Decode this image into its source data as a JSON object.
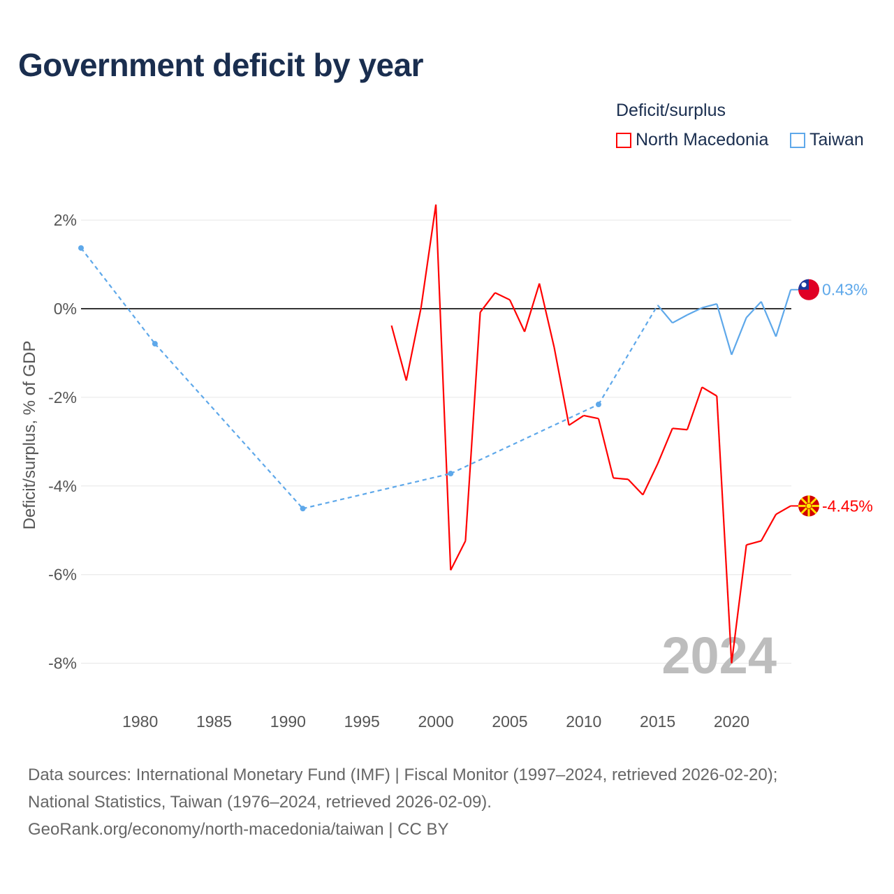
{
  "chart_data": {
    "type": "line",
    "title": "Government deficit by year",
    "ylabel": "Deficit/surplus, % of GDP",
    "xlabel": "",
    "xlim": [
      1976,
      2024
    ],
    "ylim": [
      -9,
      2.4
    ],
    "x_ticks": [
      1980,
      1985,
      1990,
      1995,
      2000,
      2005,
      2010,
      2015,
      2020
    ],
    "y_ticks": [
      2,
      0,
      -2,
      -4,
      -6,
      -8
    ],
    "y_tick_labels": [
      "2%",
      "0%",
      "-2%",
      "-4%",
      "-6%",
      "-8%"
    ],
    "legend_title": "Deficit/surplus",
    "legend_position": "top-right",
    "year_watermark": "2024",
    "series": [
      {
        "name": "North Macedonia",
        "color": "#ff0000",
        "end_label": "-4.45%",
        "x": [
          1997,
          1998,
          1999,
          2000,
          2001,
          2002,
          2003,
          2004,
          2005,
          2006,
          2007,
          2008,
          2009,
          2010,
          2011,
          2012,
          2013,
          2014,
          2015,
          2016,
          2017,
          2018,
          2019,
          2020,
          2021,
          2022,
          2023,
          2024
        ],
        "values": [
          -0.38,
          -1.62,
          0.03,
          2.35,
          -5.9,
          -5.24,
          -0.08,
          0.36,
          0.2,
          -0.52,
          0.57,
          -0.87,
          -2.63,
          -2.41,
          -2.48,
          -3.82,
          -3.85,
          -4.2,
          -3.5,
          -2.7,
          -2.73,
          -1.77,
          -1.97,
          -8.0,
          -5.33,
          -5.24,
          -4.64,
          -4.45
        ]
      },
      {
        "name": "Taiwan",
        "color": "#5ea8ea",
        "end_label": "0.43%",
        "x": [
          1976,
          1981,
          1991,
          2001,
          2011,
          2015,
          2016,
          2017,
          2018,
          2019,
          2020,
          2021,
          2022,
          2023,
          2024
        ],
        "values": [
          1.37,
          -0.79,
          -4.51,
          -3.72,
          -2.16,
          0.08,
          -0.32,
          -0.14,
          0.02,
          0.11,
          -1.04,
          -0.2,
          0.16,
          -0.63,
          0.43
        ]
      }
    ]
  },
  "footer": {
    "line1": "Data sources: International Monetary Fund (IMF) | Fiscal Monitor (1997–2024, retrieved 2026-02-20);",
    "line2": "National Statistics, Taiwan (1976–2024, retrieved 2026-02-09).",
    "line3": "GeoRank.org/economy/north-macedonia/taiwan | CC BY"
  }
}
